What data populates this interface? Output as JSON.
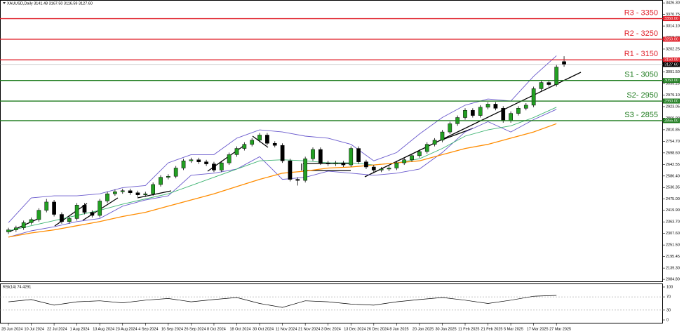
{
  "chart_data": {
    "type": "candlestick",
    "symbol_info": "XAUUSD,Daily  3141.48 3167.50 3116.59 3127.60",
    "up_color": "#22a022",
    "down_color": "#000000",
    "open": [
      2315,
      2325,
      2335,
      2360,
      2375,
      2420,
      2460,
      2400,
      2365,
      2380,
      2445,
      2410,
      2395,
      2465,
      2500,
      2510,
      2515,
      2505,
      2495,
      2500,
      2545,
      2580,
      2585,
      2625,
      2660,
      2665,
      2655,
      2645,
      2615,
      2650,
      2690,
      2720,
      2740,
      2760,
      2785,
      2745,
      2735,
      2660,
      2570,
      2565,
      2670,
      2715,
      2650,
      2645,
      2650,
      2640,
      2720,
      2655,
      2630,
      2615,
      2620,
      2625,
      2650,
      2665,
      2685,
      2705,
      2740,
      2760,
      2800,
      2840,
      2870,
      2905,
      2880,
      2920,
      2935,
      2915,
      2855,
      2890,
      2915,
      2930,
      3010,
      3040,
      3030,
      3141.48
    ],
    "high": [
      2335,
      2345,
      2370,
      2385,
      2430,
      2475,
      2470,
      2410,
      2390,
      2455,
      2455,
      2420,
      2475,
      2510,
      2520,
      2525,
      2525,
      2515,
      2510,
      2555,
      2590,
      2595,
      2635,
      2670,
      2675,
      2675,
      2665,
      2655,
      2660,
      2700,
      2730,
      2750,
      2770,
      2795,
      2795,
      2755,
      2745,
      2670,
      2580,
      2680,
      2725,
      2725,
      2660,
      2660,
      2660,
      2730,
      2730,
      2665,
      2640,
      2630,
      2635,
      2660,
      2675,
      2695,
      2715,
      2750,
      2770,
      2810,
      2850,
      2880,
      2915,
      2915,
      2930,
      2945,
      2945,
      2925,
      2900,
      2925,
      2940,
      3020,
      3050,
      3050,
      3125,
      3167.5
    ],
    "low": [
      2305,
      2315,
      2325,
      2350,
      2365,
      2410,
      2390,
      2355,
      2355,
      2370,
      2400,
      2385,
      2385,
      2455,
      2490,
      2500,
      2495,
      2485,
      2485,
      2490,
      2535,
      2570,
      2575,
      2615,
      2650,
      2645,
      2635,
      2605,
      2605,
      2640,
      2680,
      2710,
      2730,
      2750,
      2735,
      2725,
      2650,
      2560,
      2540,
      2555,
      2660,
      2640,
      2635,
      2635,
      2630,
      2630,
      2645,
      2620,
      2600,
      2605,
      2610,
      2615,
      2640,
      2655,
      2675,
      2695,
      2730,
      2750,
      2790,
      2830,
      2860,
      2870,
      2870,
      2910,
      2905,
      2845,
      2845,
      2880,
      2905,
      2920,
      3000,
      3020,
      3020,
      3116.59
    ],
    "close": [
      2325,
      2335,
      2360,
      2375,
      2420,
      2460,
      2400,
      2365,
      2380,
      2445,
      2410,
      2395,
      2465,
      2500,
      2510,
      2515,
      2505,
      2495,
      2500,
      2545,
      2580,
      2585,
      2625,
      2660,
      2665,
      2655,
      2645,
      2615,
      2650,
      2690,
      2720,
      2740,
      2760,
      2785,
      2745,
      2735,
      2660,
      2570,
      2565,
      2670,
      2715,
      2650,
      2645,
      2650,
      2640,
      2720,
      2655,
      2630,
      2615,
      2620,
      2625,
      2650,
      2665,
      2685,
      2705,
      2740,
      2760,
      2800,
      2840,
      2870,
      2905,
      2880,
      2920,
      2935,
      2915,
      2855,
      2890,
      2915,
      2930,
      3010,
      3040,
      3030,
      3115,
      3127.6
    ],
    "last_label": "3127.60",
    "x_labels": [
      "28 Jun 2024",
      "10 Jul 2024",
      "22 Jul 2024",
      "1 Aug 2024",
      "13 Aug 2024",
      "23 Aug 2024",
      "4 Sep 2024",
      "16 Sep 2024",
      "26 Sep 2024",
      "8 Oct 2024",
      "18 Oct 2024",
      "30 Oct 2024",
      "11 Nov 2024",
      "21 Nov 2024",
      "3 Dec 2024",
      "13 Dec 2024",
      "26 Dec 2024",
      "8 Jan 2025",
      "20 Jan 2025",
      "30 Jan 2025",
      "11 Feb 2025",
      "21 Feb 2025",
      "5 Mar 2025",
      "17 Mar 2025",
      "27 Mar 2025"
    ],
    "indicators": [
      {
        "color": "#6a5acd",
        "values": [
          2360,
          2480,
          2490,
          2490,
          2500,
          2530,
          2540,
          2650,
          2690,
          2690,
          2770,
          2810,
          2800,
          2780,
          2770,
          2740,
          2660,
          2700,
          2790,
          2870,
          2930,
          2960,
          2950,
          3070,
          3170
        ]
      },
      {
        "color": "#6a5acd",
        "values": [
          2290,
          2320,
          2340,
          2365,
          2380,
          2440,
          2470,
          2490,
          2590,
          2600,
          2620,
          2680,
          2570,
          2580,
          2610,
          2600,
          2590,
          2600,
          2620,
          2700,
          2800,
          2850,
          2800,
          2860,
          2910
        ]
      },
      {
        "color": "#3cb371",
        "values": [
          2320,
          2345,
          2370,
          2395,
          2420,
          2450,
          2475,
          2500,
          2540,
          2580,
          2620,
          2660,
          2665,
          2660,
          2650,
          2650,
          2640,
          2650,
          2670,
          2720,
          2780,
          2810,
          2830,
          2870,
          2920
        ]
      },
      {
        "color": "#ff8c00",
        "values": [
          2290,
          2310,
          2325,
          2345,
          2365,
          2390,
          2410,
          2440,
          2470,
          2500,
          2535,
          2570,
          2600,
          2610,
          2625,
          2630,
          2640,
          2650,
          2660,
          2690,
          2720,
          2740,
          2770,
          2800,
          2840
        ]
      }
    ],
    "levels": [
      {
        "label": "R3 - 3350",
        "value": 3350,
        "axis_label": "3350.00",
        "color": "#e0202a"
      },
      {
        "label": "R2 - 3250",
        "value": 3250,
        "axis_label": "3250.00",
        "color": "#e0202a"
      },
      {
        "label": "R1 - 3150",
        "value": 3150,
        "axis_label": "3150.00",
        "color": "#e0202a"
      },
      {
        "label": "S1 - 3050",
        "value": 3050,
        "axis_label": "3050.00",
        "color": "#1e7b1e"
      },
      {
        "label": "S2- 2950",
        "value": 2950,
        "axis_label": "2950.00",
        "color": "#1e7b1e"
      },
      {
        "label": "S3 - 2855",
        "value": 2855,
        "axis_label": "2855.00",
        "color": "#1e7b1e"
      }
    ],
    "ylim": [
      2075,
      3437
    ],
    "yticks": [
      {
        "value": 3426.3,
        "label": "3426.30"
      },
      3370.75,
      {
        "value": 3314.1,
        "label": "3314.10"
      },
      {
        "value": 3258.2,
        "label": "3258.20"
      },
      3202.25,
      {
        "value": 3147.6,
        "label": "3147.60"
      },
      {
        "value": 3091.5,
        "label": "3091.50"
      },
      3035.25,
      {
        "value": 2979.1,
        "label": "2979.10"
      },
      2923.05,
      {
        "value": 2866.9,
        "label": "2866.90"
      },
      2810.85,
      {
        "value": 2754.7,
        "label": "2754.70"
      },
      {
        "value": 2698.6,
        "label": "2698.60"
      },
      2642.55,
      {
        "value": 2586.4,
        "label": "2586.40"
      },
      2530.35,
      {
        "value": 2475,
        "label": "2475.00"
      },
      {
        "value": 2419.9,
        "label": "2419.90"
      },
      {
        "value": 2363.7,
        "label": "2363.70"
      },
      {
        "value": 2307.6,
        "label": "2307.60"
      },
      {
        "value": 2251.5,
        "label": "2251.50"
      },
      2195.45,
      {
        "value": 2139.3,
        "label": "2139.30"
      },
      {
        "value": 2084.8,
        "label": "2084.80"
      }
    ],
    "rsi": {
      "label": "RSI(14) 74.4291",
      "color": "#000000",
      "values": [
        55,
        62,
        45,
        55,
        58,
        52,
        60,
        65,
        55,
        62,
        68,
        50,
        38,
        58,
        55,
        48,
        45,
        55,
        62,
        68,
        60,
        50,
        60,
        72,
        74.4291
      ],
      "ylim": [
        0,
        100
      ],
      "yticks": [
        100,
        70,
        30,
        0
      ]
    }
  }
}
